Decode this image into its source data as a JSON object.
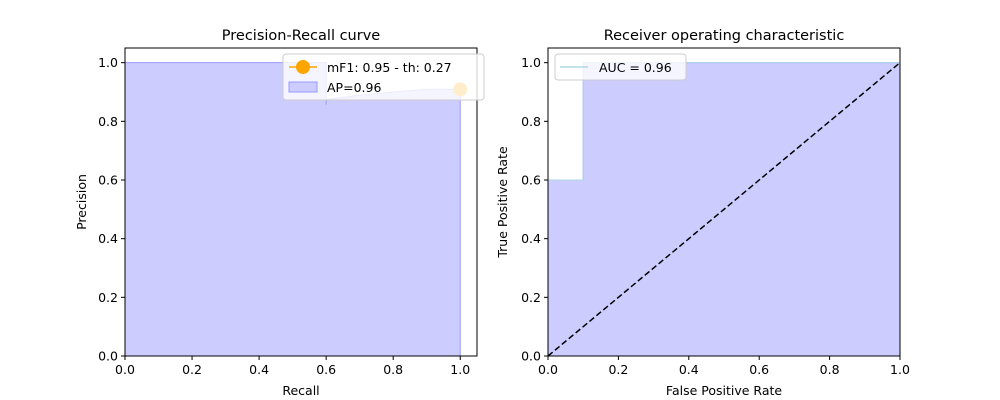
{
  "colors": {
    "fill": "#ccccff",
    "fill_edge": "#9999ff",
    "marker": "#ffa500",
    "roc_line": "#add8e6",
    "diag": "#000000"
  },
  "chart_data": [
    {
      "type": "area",
      "title": "Precision-Recall curve",
      "xlabel": "Recall",
      "ylabel": "Precision",
      "xlim": [
        0.0,
        1.05
      ],
      "ylim": [
        0.0,
        1.05
      ],
      "xticks": [
        "0.0",
        "0.2",
        "0.4",
        "0.6",
        "0.8",
        "1.0"
      ],
      "yticks": [
        "0.0",
        "0.2",
        "0.4",
        "0.6",
        "0.8",
        "1.0"
      ],
      "grid": false,
      "legend": "top-right",
      "series": [
        {
          "name": "AP=0.96",
          "kind": "step-area",
          "x": [
            0.0,
            0.6,
            0.6,
            0.6,
            0.7,
            0.8,
            0.9,
            1.0
          ],
          "y": [
            1.0,
            1.0,
            0.857,
            0.875,
            0.889,
            0.9,
            0.909,
            0.909
          ]
        },
        {
          "name": "mF1: 0.95 - th: 0.27",
          "kind": "marker",
          "x": [
            1.0
          ],
          "y": [
            0.909
          ]
        }
      ]
    },
    {
      "type": "area",
      "title": "Receiver operating characteristic",
      "xlabel": "False Positive Rate",
      "ylabel": "True Positive Rate",
      "xlim": [
        0.0,
        1.0
      ],
      "ylim": [
        0.0,
        1.05
      ],
      "xticks": [
        "0.0",
        "0.2",
        "0.4",
        "0.6",
        "0.8",
        "1.0"
      ],
      "yticks": [
        "0.0",
        "0.2",
        "0.4",
        "0.6",
        "0.8",
        "1.0"
      ],
      "grid": false,
      "legend": "top-left",
      "series": [
        {
          "name": "AUC = 0.96",
          "kind": "step-area",
          "x": [
            0.0,
            0.0,
            0.1,
            0.1,
            1.0
          ],
          "y": [
            0.0,
            0.6,
            0.6,
            1.0,
            1.0
          ]
        },
        {
          "name": "",
          "kind": "diagonal",
          "x": [
            0.0,
            1.0
          ],
          "y": [
            0.0,
            1.0
          ]
        }
      ]
    }
  ]
}
